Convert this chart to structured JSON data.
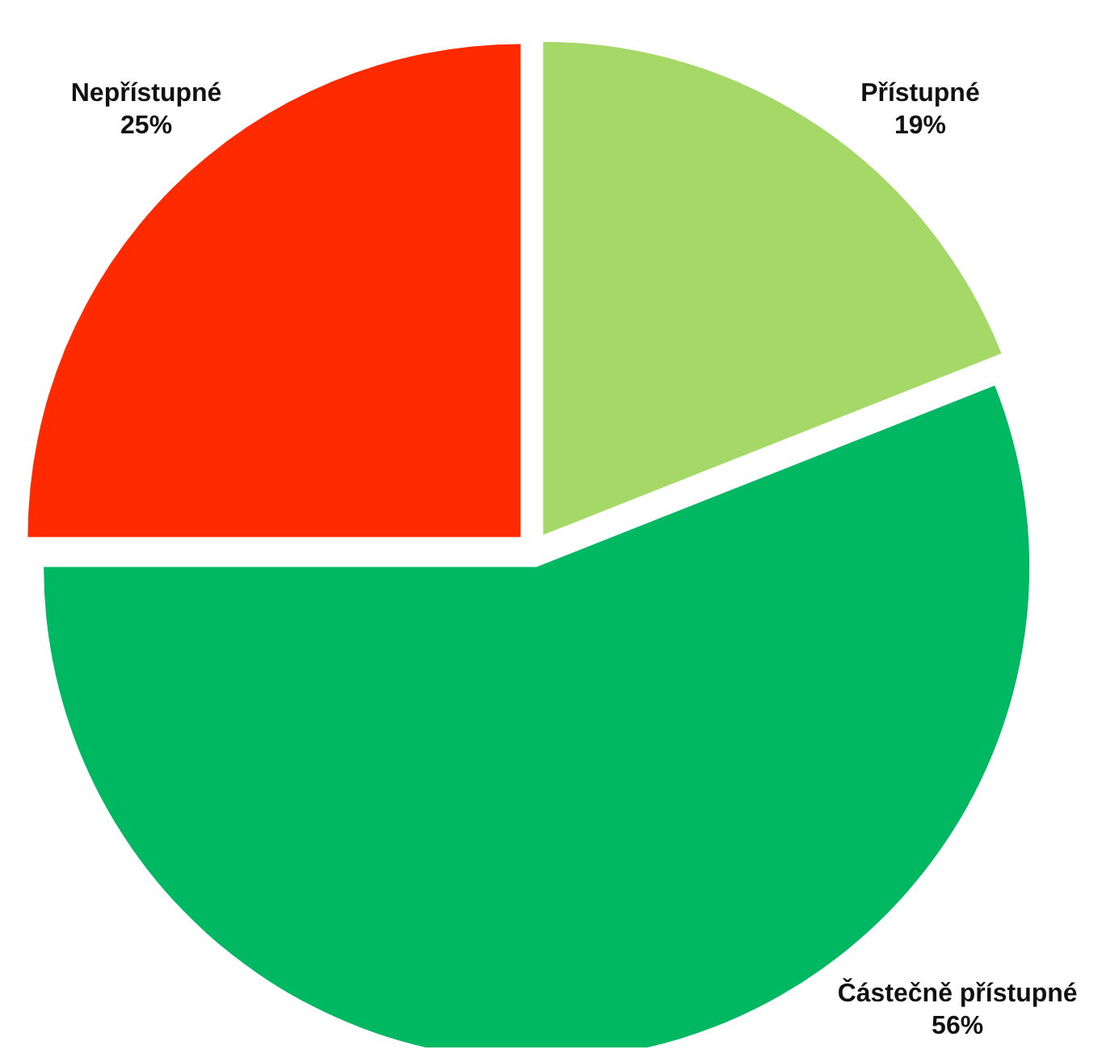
{
  "chart_data": {
    "type": "pie",
    "categories": [
      "Přístupné",
      "Částečně přístupné",
      "Nepřístupné"
    ],
    "values": [
      19,
      56,
      25
    ],
    "colors": [
      "#a5d867",
      "#00b862",
      "#ff2a00"
    ],
    "value_labels": [
      "19%",
      "56%",
      "25%"
    ]
  }
}
